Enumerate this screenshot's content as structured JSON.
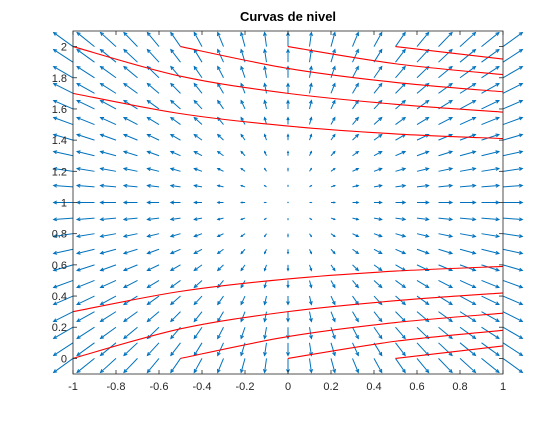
{
  "chart_data": {
    "type": "line",
    "title": "Curvas de nivel",
    "xlabel": "",
    "ylabel": "",
    "xlim": [
      -1,
      1
    ],
    "ylim": [
      -0.1,
      2.1
    ],
    "xticks": [
      -1,
      -0.8,
      -0.6,
      -0.4,
      -0.2,
      0,
      0.2,
      0.4,
      0.6,
      0.8,
      1
    ],
    "xtick_labels": [
      "-1",
      "-0.8",
      "-0.6",
      "-0.4",
      "-0.2",
      "0",
      "0.2",
      "0.4",
      "0.6",
      "0.8",
      "1"
    ],
    "yticks": [
      0,
      0.2,
      0.4,
      0.6,
      0.8,
      1,
      1.2,
      1.4,
      1.6,
      1.8,
      2
    ],
    "ytick_labels": [
      "0",
      "0.2",
      "0.4",
      "0.6",
      "0.8",
      "1",
      "1.2",
      "1.4",
      "1.6",
      "1.8",
      "2"
    ],
    "grid": false,
    "colors": {
      "curves": "#ff0000",
      "arrows": "#0072bd",
      "axes": "#262626"
    },
    "series": [
      {
        "x": [
          -1,
          -0.5,
          0,
          0.5,
          1
        ],
        "y": [
          0.3,
          0.43,
          0.51,
          0.56,
          0.59
        ]
      },
      {
        "x": [
          -1,
          -0.5,
          0,
          0.5,
          1
        ],
        "y": [
          0.0,
          0.19,
          0.3,
          0.37,
          0.42
        ]
      },
      {
        "x": [
          -0.5,
          0,
          0.5,
          1
        ],
        "y": [
          0.0,
          0.14,
          0.23,
          0.29
        ]
      },
      {
        "x": [
          0,
          0.5,
          1
        ],
        "y": [
          0.0,
          0.11,
          0.18
        ]
      },
      {
        "x": [
          0.5,
          1
        ],
        "y": [
          0.0,
          0.08
        ]
      },
      {
        "x": [
          -1,
          -0.5,
          0,
          0.5,
          1
        ],
        "y": [
          1.7,
          1.57,
          1.49,
          1.44,
          1.41
        ]
      },
      {
        "x": [
          -1,
          -0.5,
          0,
          0.5,
          1
        ],
        "y": [
          2.0,
          1.81,
          1.7,
          1.63,
          1.58
        ]
      },
      {
        "x": [
          -0.5,
          0,
          0.5,
          1
        ],
        "y": [
          2.0,
          1.86,
          1.77,
          1.71
        ]
      },
      {
        "x": [
          0,
          0.5,
          1
        ],
        "y": [
          2.0,
          1.89,
          1.82
        ]
      },
      {
        "x": [
          0.5,
          1
        ],
        "y": [
          2.0,
          1.92
        ]
      }
    ],
    "vector_field": {
      "x": [
        -1,
        -0.9,
        -0.8,
        -0.7,
        -0.6,
        -0.5,
        -0.4,
        -0.3,
        -0.2,
        -0.1,
        0,
        0.1,
        0.2,
        0.3,
        0.4,
        0.5,
        0.6,
        0.7,
        0.8,
        0.9,
        1
      ],
      "y": [
        0,
        0.1,
        0.2,
        0.3,
        0.4,
        0.5,
        0.6,
        0.7,
        0.8,
        0.9,
        1,
        1.1,
        1.2,
        1.3,
        1.4,
        1.5,
        1.6,
        1.7,
        1.8,
        1.9,
        2
      ],
      "u_formula": "x",
      "v_formula": "-(1 - y)",
      "scale": 0.09
    }
  }
}
